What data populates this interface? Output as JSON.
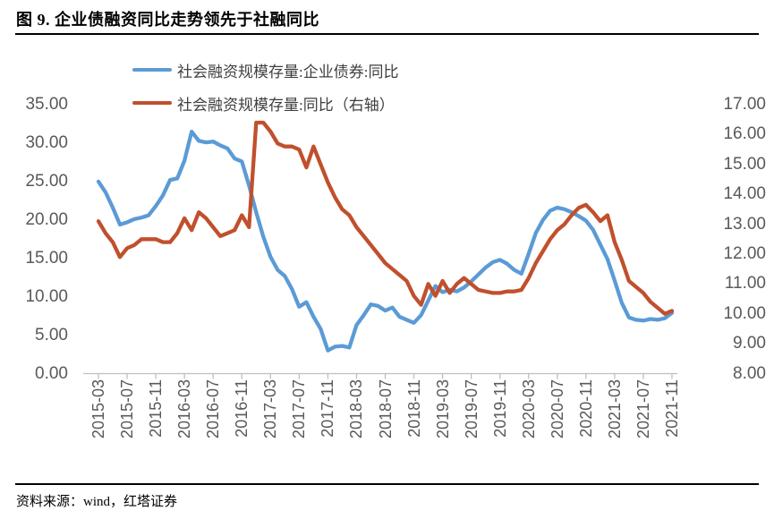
{
  "header": {
    "title": "图 9. 企业债融资同比走势领先于社融同比"
  },
  "footer": {
    "source": "资料来源：wind，红塔证券"
  },
  "chart_data": {
    "type": "line",
    "title": "图 9. 企业债融资同比走势领先于社融同比",
    "grid": false,
    "legend_position": "top",
    "left_axis": {
      "min": 0,
      "max": 35,
      "step": 5,
      "tick_labels": [
        "0.00",
        "5.00",
        "10.00",
        "15.00",
        "20.00",
        "25.00",
        "30.00",
        "35.00"
      ]
    },
    "right_axis": {
      "min": 8,
      "max": 17,
      "step": 1,
      "tick_labels": [
        "8.00",
        "9.00",
        "10.00",
        "11.00",
        "12.00",
        "13.00",
        "14.00",
        "15.00",
        "16.00",
        "17.00"
      ]
    },
    "x_tick_labels": [
      "2015-03",
      "2015-07",
      "2015-11",
      "2016-03",
      "2016-07",
      "2016-11",
      "2017-03",
      "2017-07",
      "2017-11",
      "2018-03",
      "2018-07",
      "2018-11",
      "2019-03",
      "2019-07",
      "2019-11",
      "2020-03",
      "2020-07",
      "2020-11",
      "2021-03",
      "2021-07",
      "2021-11"
    ],
    "x": [
      "2015-03",
      "2015-04",
      "2015-05",
      "2015-06",
      "2015-07",
      "2015-08",
      "2015-09",
      "2015-10",
      "2015-11",
      "2015-12",
      "2016-01",
      "2016-02",
      "2016-03",
      "2016-04",
      "2016-05",
      "2016-06",
      "2016-07",
      "2016-08",
      "2016-09",
      "2016-10",
      "2016-11",
      "2016-12",
      "2017-01",
      "2017-02",
      "2017-03",
      "2017-04",
      "2017-05",
      "2017-06",
      "2017-07",
      "2017-08",
      "2017-09",
      "2017-10",
      "2017-11",
      "2017-12",
      "2018-01",
      "2018-02",
      "2018-03",
      "2018-04",
      "2018-05",
      "2018-06",
      "2018-07",
      "2018-08",
      "2018-09",
      "2018-10",
      "2018-11",
      "2018-12",
      "2019-01",
      "2019-02",
      "2019-03",
      "2019-04",
      "2019-05",
      "2019-06",
      "2019-07",
      "2019-08",
      "2019-09",
      "2019-10",
      "2019-11",
      "2019-12",
      "2020-01",
      "2020-02",
      "2020-03",
      "2020-04",
      "2020-05",
      "2020-06",
      "2020-07",
      "2020-08",
      "2020-09",
      "2020-10",
      "2020-11",
      "2020-12",
      "2021-01",
      "2021-02",
      "2021-03",
      "2021-04",
      "2021-05",
      "2021-06",
      "2021-07",
      "2021-08",
      "2021-09",
      "2021-10",
      "2021-11"
    ],
    "series": [
      {
        "name": "社会融资规模存量:企业债券:同比",
        "axis": "left",
        "color": "#5B9BD5",
        "values": [
          25.0,
          23.6,
          21.6,
          19.4,
          19.7,
          20.1,
          20.3,
          20.6,
          21.8,
          23.2,
          25.2,
          25.4,
          27.7,
          31.5,
          30.3,
          30.1,
          30.2,
          29.7,
          29.3,
          28.0,
          27.6,
          24.5,
          21.0,
          17.8,
          15.2,
          13.5,
          12.7,
          11.0,
          8.7,
          9.3,
          7.4,
          5.8,
          3.0,
          3.5,
          3.6,
          3.4,
          6.3,
          7.6,
          9.0,
          8.8,
          8.2,
          8.6,
          7.4,
          7.0,
          6.6,
          7.6,
          9.5,
          11.4,
          10.6,
          10.9,
          10.7,
          11.2,
          12.0,
          12.9,
          13.8,
          14.5,
          14.8,
          14.3,
          13.5,
          13.0,
          15.6,
          18.3,
          20.0,
          21.2,
          21.6,
          21.4,
          21.0,
          20.5,
          19.9,
          18.7,
          16.8,
          14.9,
          12.1,
          9.2,
          7.3,
          7.0,
          6.9,
          7.1,
          7.0,
          7.2,
          7.9
        ]
      },
      {
        "name": "社会融资规模存量:同比（右轴）",
        "axis": "right",
        "color": "#C0502D",
        "values": [
          13.1,
          12.7,
          12.4,
          11.9,
          12.2,
          12.3,
          12.5,
          12.5,
          12.5,
          12.4,
          12.4,
          12.7,
          13.2,
          12.8,
          13.4,
          13.2,
          12.9,
          12.6,
          12.7,
          12.8,
          13.3,
          12.9,
          16.4,
          16.4,
          16.1,
          15.7,
          15.6,
          15.6,
          15.5,
          14.9,
          15.6,
          15.0,
          14.4,
          13.9,
          13.5,
          13.3,
          12.9,
          12.6,
          12.3,
          12.0,
          11.7,
          11.5,
          11.3,
          11.1,
          10.6,
          10.3,
          11.0,
          10.6,
          11.1,
          10.7,
          11.0,
          11.2,
          11.0,
          10.8,
          10.75,
          10.7,
          10.7,
          10.75,
          10.75,
          10.8,
          11.2,
          11.7,
          12.1,
          12.5,
          12.8,
          13.0,
          13.3,
          13.55,
          13.65,
          13.4,
          13.1,
          13.3,
          12.4,
          11.8,
          11.1,
          10.9,
          10.7,
          10.4,
          10.2,
          10.0,
          10.1
        ]
      }
    ],
    "axis_color": "#BFBFBF",
    "label_color": "#595959"
  }
}
